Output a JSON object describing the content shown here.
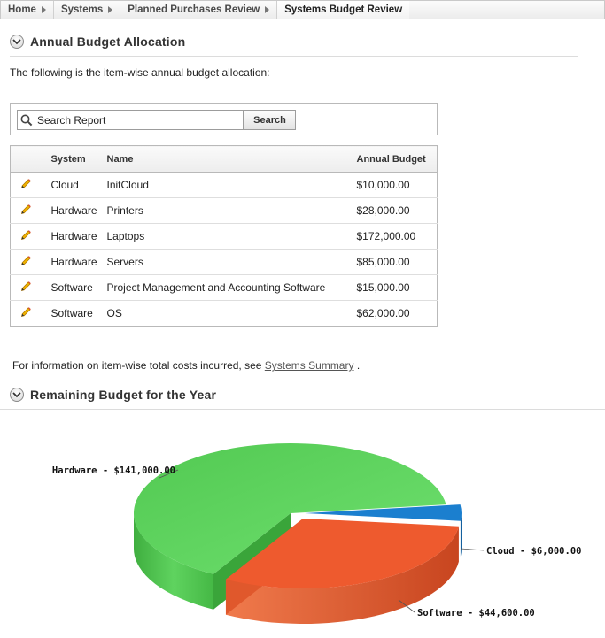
{
  "breadcrumb": [
    {
      "label": "Home"
    },
    {
      "label": "Systems"
    },
    {
      "label": "Planned Purchases Review"
    },
    {
      "label": "Systems Budget Review"
    }
  ],
  "annual_region": {
    "title": "Annual Budget Allocation",
    "intro": "The following is the item-wise annual budget allocation:"
  },
  "search": {
    "placeholder": "Search Report",
    "button_label": "Search"
  },
  "table": {
    "headers": {
      "system": "System",
      "name": "Name",
      "budget": "Annual Budget"
    },
    "rows": [
      {
        "system": "Cloud",
        "name": "InitCloud",
        "budget": "$10,000.00"
      },
      {
        "system": "Hardware",
        "name": "Printers",
        "budget": "$28,000.00"
      },
      {
        "system": "Hardware",
        "name": "Laptops",
        "budget": "$172,000.00"
      },
      {
        "system": "Hardware",
        "name": "Servers",
        "budget": "$85,000.00"
      },
      {
        "system": "Software",
        "name": "Project Management and Accounting Software",
        "budget": "$15,000.00"
      },
      {
        "system": "Software",
        "name": "OS",
        "budget": "$62,000.00"
      }
    ]
  },
  "info": {
    "prefix": "For information on item-wise total costs incurred, see",
    "link_label": "Systems Summary",
    "suffix": "."
  },
  "remaining_region": {
    "title": "Remaining Budget for the Year"
  },
  "colors": {
    "hardware": "#5fd65f",
    "software": "#ee5a2e",
    "cloud": "#1b7fcf"
  },
  "chart_data": {
    "type": "pie",
    "title": "Remaining Budget for the Year",
    "slices": [
      {
        "label": "Hardware - $141,000.00",
        "category": "Hardware",
        "value": 141000
      },
      {
        "label": "Software - $44,600.00",
        "category": "Software",
        "value": 44600
      },
      {
        "label": "Cloud - $6,000.00",
        "category": "Cloud",
        "value": 6000
      }
    ]
  }
}
